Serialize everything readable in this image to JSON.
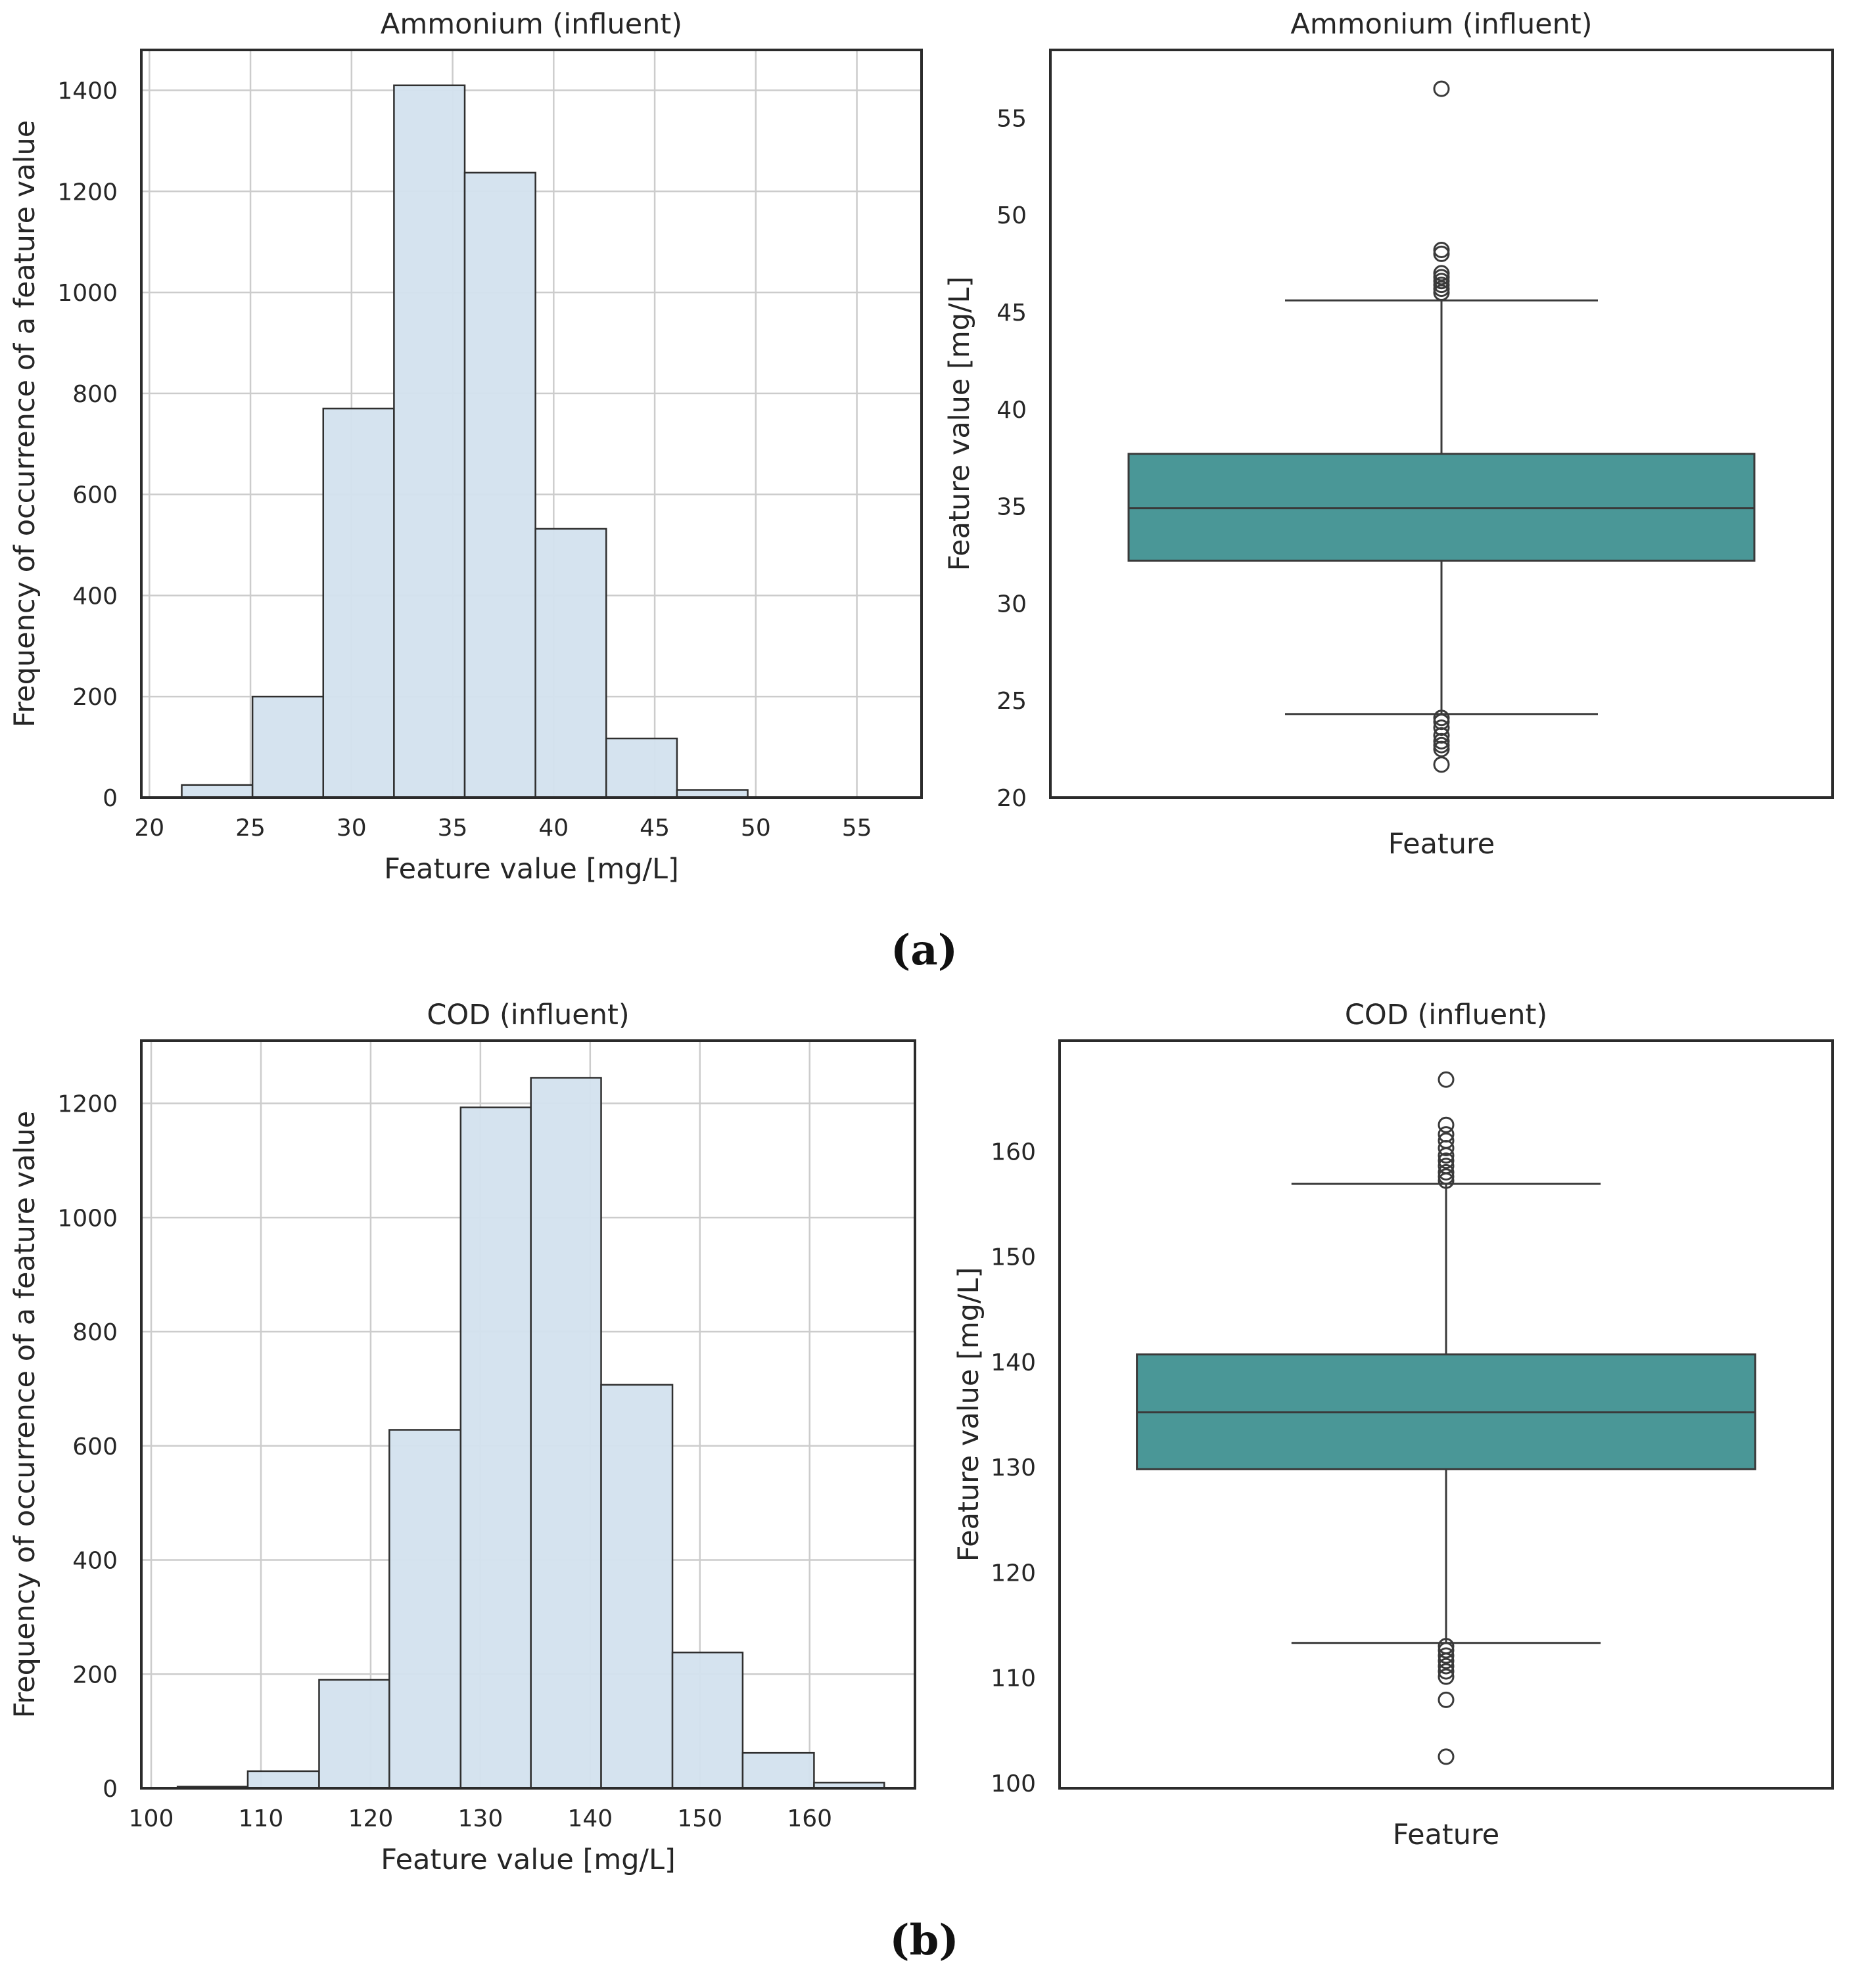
{
  "figure_labels": [
    "(a)",
    "(b)"
  ],
  "colors": {
    "hist_fill": "#d3e1ee",
    "hist_edge": "#2f2f2f",
    "box_fill": "#4a9797",
    "grid": "#cccccc",
    "axis": "#2b2b2b"
  },
  "chart_data": [
    {
      "id": "a-hist",
      "type": "bar",
      "title": "Ammonium (influent)",
      "xlabel": "Feature value [mg/L]",
      "ylabel": "Frequency of occurrence of a feature value",
      "xlim": [
        19.6,
        58.2
      ],
      "ylim": [
        0,
        1480
      ],
      "xticks": [
        20,
        25,
        30,
        35,
        40,
        45,
        50,
        55
      ],
      "yticks": [
        0,
        200,
        400,
        600,
        800,
        1000,
        1200,
        1400
      ],
      "bins": [
        {
          "x0": 21.6,
          "x1": 25.1,
          "count": 25
        },
        {
          "x0": 25.1,
          "x1": 28.6,
          "count": 200
        },
        {
          "x0": 28.6,
          "x1": 32.1,
          "count": 770
        },
        {
          "x0": 32.1,
          "x1": 35.6,
          "count": 1410
        },
        {
          "x0": 35.6,
          "x1": 39.1,
          "count": 1237
        },
        {
          "x0": 39.1,
          "x1": 42.6,
          "count": 532
        },
        {
          "x0": 42.6,
          "x1": 46.1,
          "count": 117
        },
        {
          "x0": 46.1,
          "x1": 49.6,
          "count": 15
        },
        {
          "x0": 49.6,
          "x1": 53.1,
          "count": 1
        },
        {
          "x0": 53.1,
          "x1": 56.6,
          "count": 1
        }
      ]
    },
    {
      "id": "a-box",
      "type": "box",
      "title": "Ammonium (influent)",
      "xlabel": "Feature",
      "ylabel": "Feature value [mg/L]",
      "ylim": [
        20,
        58.5
      ],
      "yticks": [
        20,
        25,
        30,
        35,
        40,
        45,
        50,
        55
      ],
      "whisker_low": 24.3,
      "q1": 32.2,
      "median": 34.9,
      "q3": 37.7,
      "whisker_high": 45.6,
      "outliers": [
        56.5,
        48.2,
        48.0,
        47.0,
        46.8,
        46.6,
        46.4,
        46.2,
        46.0,
        24.1,
        23.9,
        23.6,
        23.2,
        22.9,
        22.7,
        22.5,
        21.7
      ]
    },
    {
      "id": "b-hist",
      "type": "bar",
      "title": "COD (influent)",
      "xlabel": "Feature value [mg/L]",
      "ylabel": "Frequency of occurrence of a feature value",
      "xlim": [
        99.1,
        169.6
      ],
      "ylim": [
        0,
        1310
      ],
      "xticks": [
        100,
        110,
        120,
        130,
        140,
        150,
        160
      ],
      "yticks": [
        0,
        200,
        400,
        600,
        800,
        1000,
        1200
      ],
      "bins": [
        {
          "x0": 102.4,
          "x1": 108.8,
          "count": 3
        },
        {
          "x0": 108.8,
          "x1": 115.3,
          "count": 30
        },
        {
          "x0": 115.3,
          "x1": 121.7,
          "count": 190
        },
        {
          "x0": 121.7,
          "x1": 128.2,
          "count": 628
        },
        {
          "x0": 128.2,
          "x1": 134.6,
          "count": 1193
        },
        {
          "x0": 134.6,
          "x1": 141.0,
          "count": 1245
        },
        {
          "x0": 141.0,
          "x1": 147.5,
          "count": 707
        },
        {
          "x0": 147.5,
          "x1": 153.9,
          "count": 238
        },
        {
          "x0": 153.9,
          "x1": 160.4,
          "count": 62
        },
        {
          "x0": 160.4,
          "x1": 166.8,
          "count": 10
        }
      ]
    },
    {
      "id": "b-box",
      "type": "box",
      "title": "COD (influent)",
      "xlabel": "Feature",
      "ylabel": "Feature value [mg/L]",
      "ylim": [
        99.5,
        170.5
      ],
      "yticks": [
        100,
        110,
        120,
        130,
        140,
        150,
        160
      ],
      "whisker_low": 113.3,
      "q1": 129.8,
      "median": 135.2,
      "q3": 140.7,
      "whisker_high": 156.9,
      "outliers": [
        166.8,
        162.5,
        161.6,
        161.0,
        160.3,
        159.6,
        159.1,
        158.6,
        158.0,
        157.6,
        157.2,
        113.0,
        112.6,
        112.1,
        111.6,
        111.1,
        110.6,
        110.1,
        107.9,
        102.5
      ]
    }
  ]
}
